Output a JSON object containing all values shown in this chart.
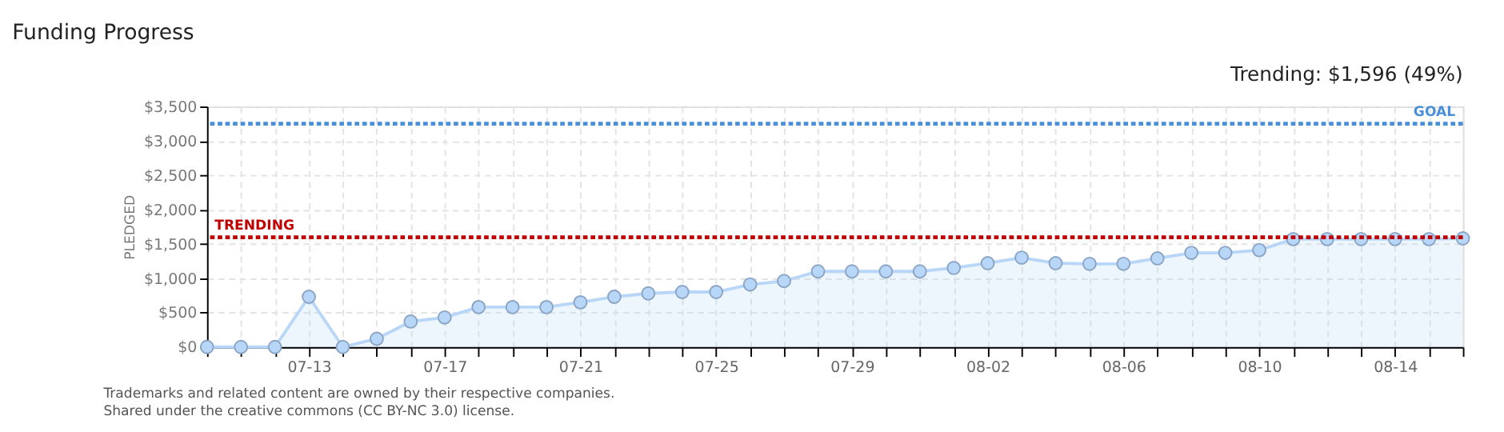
{
  "chart_data": {
    "type": "area",
    "title": "Funding Progress",
    "subtitle": "Trending: $1,596 (49%)",
    "ylabel": "PLEDGED",
    "categories": [
      null,
      null,
      null,
      "07-13",
      null,
      null,
      null,
      "07-17",
      null,
      null,
      null,
      "07-21",
      null,
      null,
      null,
      "07-25",
      null,
      null,
      null,
      "07-29",
      null,
      null,
      null,
      "08-02",
      null,
      null,
      null,
      "08-06",
      null,
      null,
      null,
      "08-10",
      null,
      null,
      null,
      "08-14",
      null,
      null
    ],
    "series": [
      {
        "color": "#b8d6f7",
        "values": [
          0,
          0,
          0,
          730,
          0,
          120,
          370,
          430,
          580,
          580,
          580,
          650,
          730,
          780,
          800,
          800,
          910,
          960,
          1100,
          1100,
          1100,
          1100,
          1150,
          1220,
          1300,
          1220,
          1210,
          1210,
          1290,
          1370,
          1370,
          1410,
          1570,
          1570,
          1570,
          1570,
          1570,
          1580
        ]
      }
    ],
    "ylim": [
      0,
      3500
    ],
    "yticks": [
      {
        "value": 0,
        "label": "$0"
      },
      {
        "value": 500,
        "label": "$500"
      },
      {
        "value": 1000,
        "label": "$1,000"
      },
      {
        "value": 1500,
        "label": "$1,500"
      },
      {
        "value": 2000,
        "label": "$2,000"
      },
      {
        "value": 2500,
        "label": "$2,500"
      },
      {
        "value": 3000,
        "label": "$3,000"
      },
      {
        "value": 3500,
        "label": "$3,500"
      }
    ],
    "ref_lines": [
      {
        "axis": "y",
        "value": 3250,
        "label": "GOAL",
        "color": "#4a90d9",
        "line_style": "dotted"
      },
      {
        "axis": "y",
        "value": 1596,
        "label": "TRENDING",
        "color": "#c00000",
        "line_style": "dotted"
      }
    ],
    "annotations": [
      "Trademarks and related content are owned by their respective companies.",
      "Shared under the creative commons (CC BY-NC 3.0) license."
    ],
    "grid": true,
    "legend": false,
    "marker": "circle"
  }
}
